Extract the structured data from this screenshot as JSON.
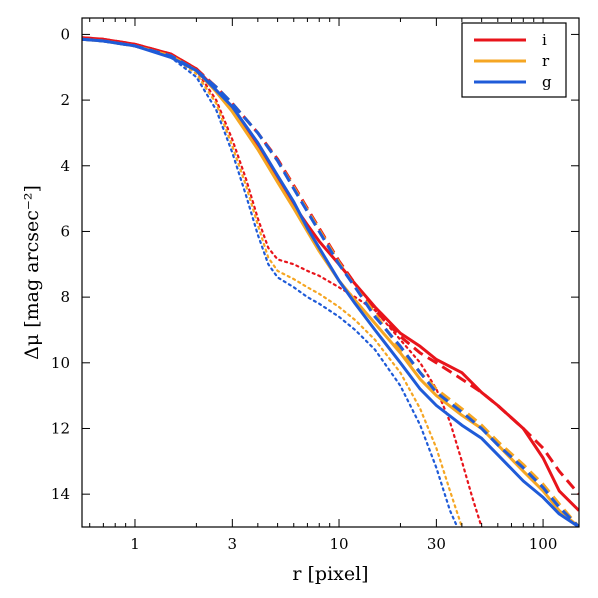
{
  "chart_data": {
    "type": "line",
    "title": "",
    "xlabel": "r [pixel]",
    "ylabel": "Δμ [mag arcsec⁻²]",
    "xscale": "log",
    "xlim": [
      0.55,
      150
    ],
    "ylim": [
      15,
      -0.5
    ],
    "y_inverted": true,
    "xticks": [
      1,
      3,
      10,
      30,
      100
    ],
    "xtick_labels": [
      "1",
      "3",
      "10",
      "30",
      "100"
    ],
    "yticks": [
      0,
      2,
      4,
      6,
      8,
      10,
      12,
      14
    ],
    "ytick_labels": [
      "0",
      "2",
      "4",
      "6",
      "8",
      "10",
      "12",
      "14"
    ],
    "grid": false,
    "legend_position": "top-right",
    "legend": [
      "i",
      "r",
      "g"
    ],
    "colors": {
      "i": "#e8141b",
      "r": "#f5a623",
      "g": "#1f5bd8"
    },
    "series": [
      {
        "name": "i",
        "style": "solid",
        "color": "#e8141b",
        "x": [
          0.55,
          0.7,
          1,
          1.5,
          2,
          2.5,
          3,
          4,
          5,
          6,
          7,
          8,
          10,
          12,
          15,
          20,
          25,
          30,
          40,
          50,
          60,
          80,
          100,
          120,
          150
        ],
        "y": [
          0.1,
          0.15,
          0.3,
          0.6,
          1.05,
          1.7,
          2.3,
          3.4,
          4.4,
          5.2,
          5.8,
          6.3,
          7.0,
          7.6,
          8.3,
          9.1,
          9.5,
          9.9,
          10.3,
          10.9,
          11.3,
          12.0,
          12.9,
          13.9,
          14.5
        ]
      },
      {
        "name": "i",
        "style": "dashed",
        "color": "#e8141b",
        "x": [
          0.55,
          0.7,
          1,
          1.5,
          2,
          2.5,
          3,
          4,
          5,
          6,
          7,
          8,
          10,
          12,
          15,
          20,
          25,
          30,
          40,
          50,
          60,
          80,
          100,
          120,
          150
        ],
        "y": [
          0.1,
          0.15,
          0.3,
          0.6,
          1.05,
          1.6,
          2.1,
          3.0,
          3.8,
          4.6,
          5.3,
          5.9,
          6.9,
          7.6,
          8.4,
          9.2,
          9.7,
          10.0,
          10.5,
          10.9,
          11.3,
          12.0,
          12.6,
          13.3,
          14.0
        ]
      },
      {
        "name": "i",
        "style": "dotted",
        "color": "#e8141b",
        "x": [
          0.55,
          0.7,
          1,
          1.5,
          2,
          2.5,
          3,
          3.5,
          4,
          4.5,
          5,
          6,
          7,
          8,
          10,
          12,
          15,
          20,
          25,
          30,
          35,
          40,
          45,
          50
        ],
        "y": [
          0.1,
          0.15,
          0.3,
          0.6,
          1.1,
          2.0,
          3.2,
          4.4,
          5.6,
          6.5,
          6.85,
          7.0,
          7.2,
          7.35,
          7.7,
          8.0,
          8.4,
          9.3,
          10.0,
          10.8,
          11.8,
          13.0,
          14.1,
          15.0
        ]
      },
      {
        "name": "r",
        "style": "solid",
        "color": "#f5a623",
        "x": [
          0.55,
          0.7,
          1,
          1.5,
          2,
          2.5,
          3,
          4,
          5,
          6,
          7,
          8,
          10,
          12,
          15,
          20,
          25,
          30,
          40,
          50,
          60,
          80,
          100,
          120,
          150
        ],
        "y": [
          0.15,
          0.2,
          0.35,
          0.65,
          1.1,
          1.75,
          2.35,
          3.5,
          4.5,
          5.3,
          6.0,
          6.6,
          7.5,
          8.1,
          8.8,
          9.7,
          10.5,
          11.0,
          11.6,
          12.0,
          12.5,
          13.3,
          13.9,
          14.5,
          15.0
        ]
      },
      {
        "name": "r",
        "style": "dashed",
        "color": "#f5a623",
        "x": [
          0.55,
          0.7,
          1,
          1.5,
          2,
          2.5,
          3,
          4,
          5,
          6,
          7,
          8,
          10,
          12,
          15,
          20,
          25,
          30,
          40,
          50,
          60,
          80,
          100,
          120,
          150
        ],
        "y": [
          0.15,
          0.2,
          0.35,
          0.65,
          1.1,
          1.6,
          2.1,
          3.0,
          3.85,
          4.65,
          5.35,
          5.95,
          6.95,
          7.7,
          8.5,
          9.6,
          10.3,
          10.8,
          11.4,
          11.9,
          12.4,
          13.1,
          13.7,
          14.3,
          15.0
        ]
      },
      {
        "name": "r",
        "style": "dotted",
        "color": "#f5a623",
        "x": [
          0.55,
          0.7,
          1,
          1.5,
          2,
          2.5,
          3,
          3.5,
          4,
          4.5,
          5,
          6,
          7,
          8,
          10,
          12,
          15,
          20,
          25,
          30,
          35,
          40
        ],
        "y": [
          0.15,
          0.2,
          0.35,
          0.65,
          1.2,
          2.1,
          3.4,
          4.6,
          5.8,
          6.8,
          7.2,
          7.45,
          7.7,
          7.9,
          8.3,
          8.7,
          9.3,
          10.3,
          11.4,
          12.6,
          13.9,
          15.0
        ]
      },
      {
        "name": "g",
        "style": "solid",
        "color": "#1f5bd8",
        "x": [
          0.55,
          0.7,
          1,
          1.5,
          2,
          2.5,
          3,
          4,
          5,
          6,
          7,
          8,
          10,
          12,
          15,
          20,
          25,
          30,
          40,
          50,
          60,
          80,
          100,
          120,
          150
        ],
        "y": [
          0.15,
          0.2,
          0.35,
          0.7,
          1.1,
          1.7,
          2.2,
          3.3,
          4.3,
          5.1,
          5.9,
          6.5,
          7.5,
          8.2,
          9.0,
          10.0,
          10.8,
          11.3,
          11.9,
          12.3,
          12.8,
          13.6,
          14.1,
          14.6,
          15.0
        ]
      },
      {
        "name": "g",
        "style": "dashed",
        "color": "#1f5bd8",
        "x": [
          0.55,
          0.7,
          1,
          1.5,
          2,
          2.5,
          3,
          4,
          5,
          6,
          7,
          8,
          10,
          12,
          15,
          20,
          25,
          30,
          40,
          50,
          60,
          80,
          100,
          120,
          150
        ],
        "y": [
          0.15,
          0.2,
          0.35,
          0.65,
          1.1,
          1.6,
          2.1,
          3.0,
          3.85,
          4.7,
          5.4,
          6.0,
          7.0,
          7.7,
          8.6,
          9.5,
          10.3,
          10.9,
          11.5,
          12.0,
          12.5,
          13.2,
          13.8,
          14.4,
          15.0
        ]
      },
      {
        "name": "g",
        "style": "dotted",
        "color": "#1f5bd8",
        "x": [
          0.55,
          0.7,
          1,
          1.5,
          2,
          2.5,
          3,
          3.5,
          4,
          4.5,
          5,
          6,
          7,
          8,
          10,
          12,
          15,
          20,
          25,
          30,
          35,
          38
        ],
        "y": [
          0.15,
          0.2,
          0.35,
          0.7,
          1.3,
          2.3,
          3.6,
          4.9,
          6.1,
          7.0,
          7.4,
          7.7,
          8.0,
          8.2,
          8.6,
          9.0,
          9.6,
          10.7,
          11.9,
          13.2,
          14.5,
          15.0
        ]
      }
    ]
  }
}
